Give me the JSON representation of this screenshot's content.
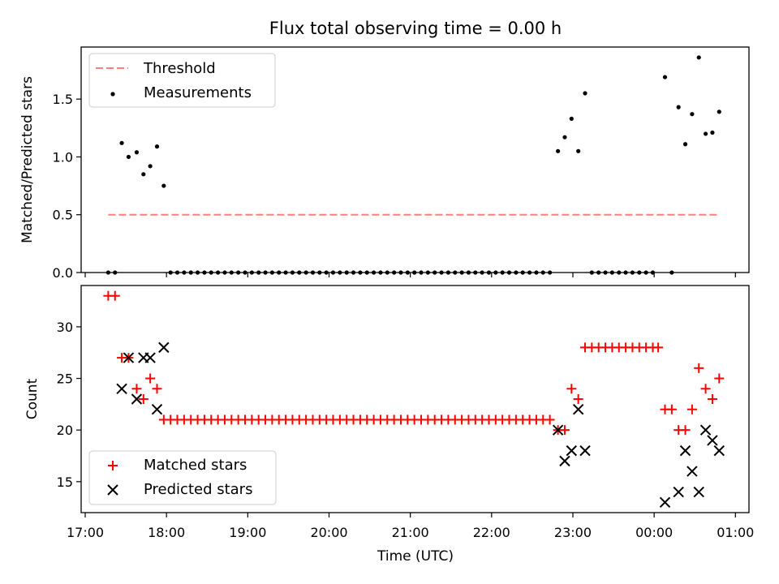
{
  "figure": {
    "title": "Flux total observing time = 0.00 h"
  },
  "chart_data": [
    {
      "type": "scatter",
      "ylabel": "Matched/Predicted stars",
      "xlabel": "",
      "ylim": [
        0.0,
        1.95
      ],
      "yticks": [
        "0.0",
        "0.5",
        "1.0",
        "1.5"
      ],
      "grid": false,
      "legend": {
        "position": "top-left",
        "entries": [
          "Threshold",
          "Measurements"
        ]
      },
      "colors": {
        "threshold": "#ff7f7f",
        "measurements": "#000000"
      },
      "threshold": {
        "name": "Threshold",
        "value": 0.5,
        "x_start": "17:17",
        "x_end": "00:48"
      },
      "series": [
        {
          "name": "Measurements",
          "points": [
            [
              "17:17",
              0.0
            ],
            [
              "17:22",
              0.0
            ],
            [
              "17:27",
              1.12
            ],
            [
              "17:32",
              1.0
            ],
            [
              "17:38",
              1.04
            ],
            [
              "17:43",
              0.85
            ],
            [
              "17:48",
              0.92
            ],
            [
              "17:53",
              1.09
            ],
            [
              "17:58",
              0.75
            ],
            [
              "18:03",
              0.0
            ],
            [
              "18:08",
              0.0
            ],
            [
              "18:13",
              0.0
            ],
            [
              "18:18",
              0.0
            ],
            [
              "18:23",
              0.0
            ],
            [
              "18:28",
              0.0
            ],
            [
              "18:33",
              0.0
            ],
            [
              "18:38",
              0.0
            ],
            [
              "18:43",
              0.0
            ],
            [
              "18:48",
              0.0
            ],
            [
              "18:53",
              0.0
            ],
            [
              "18:58",
              0.0
            ],
            [
              "19:03",
              0.0
            ],
            [
              "19:08",
              0.0
            ],
            [
              "19:13",
              0.0
            ],
            [
              "19:18",
              0.0
            ],
            [
              "19:23",
              0.0
            ],
            [
              "19:28",
              0.0
            ],
            [
              "19:33",
              0.0
            ],
            [
              "19:38",
              0.0
            ],
            [
              "19:43",
              0.0
            ],
            [
              "19:48",
              0.0
            ],
            [
              "19:53",
              0.0
            ],
            [
              "19:58",
              0.0
            ],
            [
              "20:03",
              0.0
            ],
            [
              "20:08",
              0.0
            ],
            [
              "20:13",
              0.0
            ],
            [
              "20:18",
              0.0
            ],
            [
              "20:23",
              0.0
            ],
            [
              "20:28",
              0.0
            ],
            [
              "20:33",
              0.0
            ],
            [
              "20:38",
              0.0
            ],
            [
              "20:43",
              0.0
            ],
            [
              "20:48",
              0.0
            ],
            [
              "20:53",
              0.0
            ],
            [
              "20:58",
              0.0
            ],
            [
              "21:03",
              0.0
            ],
            [
              "21:08",
              0.0
            ],
            [
              "21:13",
              0.0
            ],
            [
              "21:18",
              0.0
            ],
            [
              "21:23",
              0.0
            ],
            [
              "21:28",
              0.0
            ],
            [
              "21:33",
              0.0
            ],
            [
              "21:38",
              0.0
            ],
            [
              "21:43",
              0.0
            ],
            [
              "21:48",
              0.0
            ],
            [
              "21:53",
              0.0
            ],
            [
              "21:58",
              0.0
            ],
            [
              "22:03",
              0.0
            ],
            [
              "22:08",
              0.0
            ],
            [
              "22:13",
              0.0
            ],
            [
              "22:18",
              0.0
            ],
            [
              "22:23",
              0.0
            ],
            [
              "22:28",
              0.0
            ],
            [
              "22:33",
              0.0
            ],
            [
              "22:38",
              0.0
            ],
            [
              "22:43",
              0.0
            ],
            [
              "22:49",
              1.05
            ],
            [
              "22:54",
              1.17
            ],
            [
              "22:59",
              1.33
            ],
            [
              "23:04",
              1.05
            ],
            [
              "23:09",
              1.55
            ],
            [
              "23:14",
              0.0
            ],
            [
              "23:19",
              0.0
            ],
            [
              "23:24",
              0.0
            ],
            [
              "23:29",
              0.0
            ],
            [
              "23:34",
              0.0
            ],
            [
              "23:39",
              0.0
            ],
            [
              "23:44",
              0.0
            ],
            [
              "23:49",
              0.0
            ],
            [
              "23:54",
              0.0
            ],
            [
              "23:59",
              0.0
            ],
            [
              "00:08",
              1.69
            ],
            [
              "00:13",
              0.0
            ],
            [
              "00:18",
              1.43
            ],
            [
              "00:23",
              1.11
            ],
            [
              "00:28",
              1.37
            ],
            [
              "00:33",
              1.86
            ],
            [
              "00:38",
              1.2
            ],
            [
              "00:43",
              1.21
            ],
            [
              "00:48",
              1.39
            ]
          ]
        }
      ]
    },
    {
      "type": "scatter",
      "ylabel": "Count",
      "xlabel": "Time (UTC)",
      "ylim": [
        12.0,
        34.0
      ],
      "yticks": [
        "15",
        "20",
        "25",
        "30"
      ],
      "xlim": [
        "16:57",
        "01:10"
      ],
      "xticks": [
        "17:00",
        "18:00",
        "19:00",
        "20:00",
        "21:00",
        "22:00",
        "23:00",
        "00:00",
        "01:00"
      ],
      "grid": false,
      "legend": {
        "position": "bottom-left",
        "entries": [
          "Matched stars",
          "Predicted stars"
        ]
      },
      "colors": {
        "matched": "#ff0000",
        "predicted": "#000000"
      },
      "series": [
        {
          "name": "Matched stars",
          "points": [
            [
              "17:17",
              33
            ],
            [
              "17:22",
              33
            ],
            [
              "17:27",
              27
            ],
            [
              "17:32",
              27
            ],
            [
              "17:38",
              24
            ],
            [
              "17:43",
              23
            ],
            [
              "17:48",
              25
            ],
            [
              "17:53",
              24
            ],
            [
              "17:58",
              21
            ],
            [
              "18:03",
              21
            ],
            [
              "18:08",
              21
            ],
            [
              "18:13",
              21
            ],
            [
              "18:18",
              21
            ],
            [
              "18:23",
              21
            ],
            [
              "18:28",
              21
            ],
            [
              "18:33",
              21
            ],
            [
              "18:38",
              21
            ],
            [
              "18:43",
              21
            ],
            [
              "18:48",
              21
            ],
            [
              "18:53",
              21
            ],
            [
              "18:58",
              21
            ],
            [
              "19:03",
              21
            ],
            [
              "19:08",
              21
            ],
            [
              "19:13",
              21
            ],
            [
              "19:18",
              21
            ],
            [
              "19:23",
              21
            ],
            [
              "19:28",
              21
            ],
            [
              "19:33",
              21
            ],
            [
              "19:38",
              21
            ],
            [
              "19:43",
              21
            ],
            [
              "19:48",
              21
            ],
            [
              "19:53",
              21
            ],
            [
              "19:58",
              21
            ],
            [
              "20:03",
              21
            ],
            [
              "20:08",
              21
            ],
            [
              "20:13",
              21
            ],
            [
              "20:18",
              21
            ],
            [
              "20:23",
              21
            ],
            [
              "20:28",
              21
            ],
            [
              "20:33",
              21
            ],
            [
              "20:38",
              21
            ],
            [
              "20:43",
              21
            ],
            [
              "20:48",
              21
            ],
            [
              "20:53",
              21
            ],
            [
              "20:58",
              21
            ],
            [
              "21:03",
              21
            ],
            [
              "21:08",
              21
            ],
            [
              "21:13",
              21
            ],
            [
              "21:18",
              21
            ],
            [
              "21:23",
              21
            ],
            [
              "21:28",
              21
            ],
            [
              "21:33",
              21
            ],
            [
              "21:38",
              21
            ],
            [
              "21:43",
              21
            ],
            [
              "21:48",
              21
            ],
            [
              "21:53",
              21
            ],
            [
              "21:58",
              21
            ],
            [
              "22:03",
              21
            ],
            [
              "22:08",
              21
            ],
            [
              "22:13",
              21
            ],
            [
              "22:18",
              21
            ],
            [
              "22:23",
              21
            ],
            [
              "22:28",
              21
            ],
            [
              "22:33",
              21
            ],
            [
              "22:38",
              21
            ],
            [
              "22:43",
              21
            ],
            [
              "22:49",
              20
            ],
            [
              "22:54",
              20
            ],
            [
              "22:59",
              24
            ],
            [
              "23:04",
              23
            ],
            [
              "23:09",
              28
            ],
            [
              "23:14",
              28
            ],
            [
              "23:19",
              28
            ],
            [
              "23:24",
              28
            ],
            [
              "23:29",
              28
            ],
            [
              "23:34",
              28
            ],
            [
              "23:39",
              28
            ],
            [
              "23:44",
              28
            ],
            [
              "23:49",
              28
            ],
            [
              "23:54",
              28
            ],
            [
              "23:59",
              28
            ],
            [
              "00:03",
              28
            ],
            [
              "00:08",
              22
            ],
            [
              "00:13",
              22
            ],
            [
              "00:18",
              20
            ],
            [
              "00:23",
              20
            ],
            [
              "00:28",
              22
            ],
            [
              "00:33",
              26
            ],
            [
              "00:38",
              24
            ],
            [
              "00:43",
              23
            ],
            [
              "00:48",
              25
            ]
          ]
        },
        {
          "name": "Predicted stars",
          "points": [
            [
              "17:27",
              24
            ],
            [
              "17:32",
              27
            ],
            [
              "17:38",
              23
            ],
            [
              "17:43",
              27
            ],
            [
              "17:48",
              27
            ],
            [
              "17:53",
              22
            ],
            [
              "17:58",
              28
            ],
            [
              "22:49",
              20
            ],
            [
              "22:54",
              17
            ],
            [
              "22:59",
              18
            ],
            [
              "23:04",
              22
            ],
            [
              "23:09",
              18
            ],
            [
              "00:08",
              13
            ],
            [
              "00:18",
              14
            ],
            [
              "00:23",
              18
            ],
            [
              "00:28",
              16
            ],
            [
              "00:33",
              14
            ],
            [
              "00:38",
              20
            ],
            [
              "00:43",
              19
            ],
            [
              "00:48",
              18
            ]
          ]
        }
      ]
    }
  ]
}
